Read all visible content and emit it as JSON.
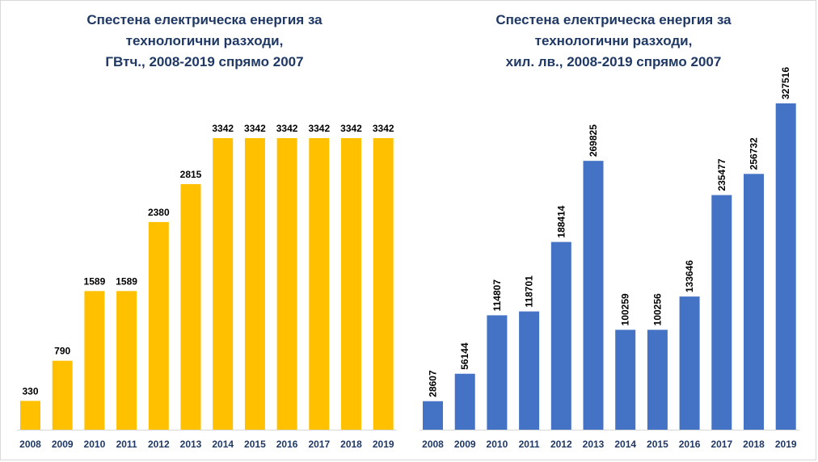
{
  "chart_data": [
    {
      "type": "bar",
      "title_lines": [
        "Спестена електрическа енергия за",
        "технологични разходи,",
        "ГВтч., 2008-2019 спрямо 2007"
      ],
      "categories": [
        "2008",
        "2009",
        "2010",
        "2011",
        "2012",
        "2013",
        "2014",
        "2015",
        "2016",
        "2017",
        "2018",
        "2019"
      ],
      "values": [
        330,
        790,
        1589,
        1589,
        2380,
        2815,
        3342,
        3342,
        3342,
        3342,
        3342,
        3342
      ],
      "color": "#FFC000",
      "label_rotation": "horizontal",
      "ylim": [
        0,
        3342
      ],
      "grid": false,
      "legend": "none"
    },
    {
      "type": "bar",
      "title_lines": [
        "Спестена електрическа енергия за",
        "технологични разходи,",
        "хил. лв., 2008-2019 спрямо 2007"
      ],
      "categories": [
        "2008",
        "2009",
        "2010",
        "2011",
        "2012",
        "2013",
        "2014",
        "2015",
        "2016",
        "2017",
        "2018",
        "2019"
      ],
      "values": [
        28607,
        56144,
        114807,
        118701,
        188414,
        269825,
        100259,
        100256,
        133646,
        235477,
        256732,
        327516
      ],
      "color": "#4472C4",
      "label_rotation": "vertical",
      "ylim": [
        0,
        327516
      ],
      "grid": false,
      "legend": "none"
    }
  ]
}
